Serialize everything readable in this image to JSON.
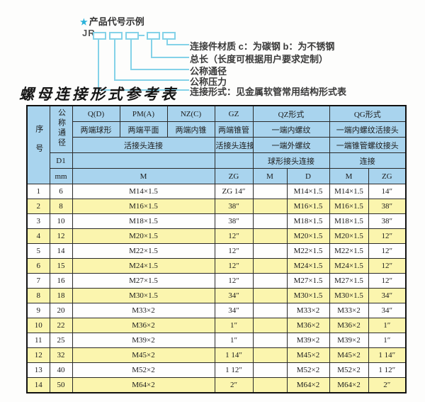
{
  "diagram": {
    "star": "★",
    "heading": "产品代号示例",
    "code_prefix": "JR",
    "callouts": [
      "连接件材质  c：为碳钢  b：为不锈钢",
      "总长（长度可根据用户要求定制）",
      "公称通径",
      "公称压力",
      "连接形式：见金属软管常用结构形式表"
    ]
  },
  "table": {
    "title": "螺母连接形式参考表",
    "header": {
      "seq": "序号",
      "dn": "公称通径",
      "d1": "D1",
      "mm": "mm",
      "col_q": "Q(D)",
      "col_pm": "PM(A)",
      "col_nz": "NZ(C)",
      "col_gz": "GZ",
      "col_qz": "QZ形式",
      "col_qg": "QG形式",
      "q_desc": "两端球形",
      "pm_desc": "两端平面",
      "nz_desc": "两端内锥",
      "gz_desc": "两端锥管",
      "qz_desc1": "一端内螺纹",
      "qg_desc1": "一端内螺纹活接头",
      "m_conn": "活接头连接",
      "gz_conn": "活接头连接",
      "qz_desc2": "一端外螺纹",
      "qg_desc2": "一端锥管螺纹接头",
      "qz_conn": "球形接头连接",
      "qg_conn": "连接",
      "m_label": "M",
      "zg_label": "ZG",
      "qz_m_label": "M",
      "qz_d_label": "D",
      "qg_m_label": "M",
      "qg_zg_label": "ZG"
    },
    "rows": [
      {
        "no": "1",
        "dn": "6",
        "m": "M14×1.5",
        "gz": "ZG 1/4\"",
        "qz_m": "",
        "qz_d": "M14×1.5",
        "qg_m": "M14×1.5",
        "qg_zg": "1/4\""
      },
      {
        "no": "2",
        "dn": "8",
        "m": "M16×1.5",
        "gz": "3/8\"",
        "qz_m": "",
        "qz_d": "M16×1.5",
        "qg_m": "M16×1.5",
        "qg_zg": "3/8\""
      },
      {
        "no": "3",
        "dn": "10",
        "m": "M18×1.5",
        "gz": "3/8\"",
        "qz_m": "",
        "qz_d": "M18×1.5",
        "qg_m": "M18×1.5",
        "qg_zg": "3/8\""
      },
      {
        "no": "4",
        "dn": "12",
        "m": "M20×1.5",
        "gz": "1/2\"",
        "qz_m": "",
        "qz_d": "M20×1.5",
        "qg_m": "M20×1.5",
        "qg_zg": "1/2\""
      },
      {
        "no": "5",
        "dn": "14",
        "m": "M22×1.5",
        "gz": "1/2\"",
        "qz_m": "",
        "qz_d": "M22×1.5",
        "qg_m": "M22×1.5",
        "qg_zg": "1/2\""
      },
      {
        "no": "6",
        "dn": "15",
        "m": "M24×1.5",
        "gz": "1/2\"",
        "qz_m": "",
        "qz_d": "M24×1.5",
        "qg_m": "M24×1.5",
        "qg_zg": "1/2\""
      },
      {
        "no": "7",
        "dn": "16",
        "m": "M27×1.5",
        "gz": "1/2\"",
        "qz_m": "",
        "qz_d": "M27×1.5",
        "qg_m": "M27×1.5",
        "qg_zg": "1/2\""
      },
      {
        "no": "8",
        "dn": "18",
        "m": "M30×1.5",
        "gz": "3/4\"",
        "qz_m": "",
        "qz_d": "M30×1.5",
        "qg_m": "M30×1.5",
        "qg_zg": "3/4\""
      },
      {
        "no": "9",
        "dn": "20",
        "m": "M33×2",
        "gz": "3/4\"",
        "qz_m": "",
        "qz_d": "M33×2",
        "qg_m": "M33×2",
        "qg_zg": "3/4\""
      },
      {
        "no": "10",
        "dn": "22",
        "m": "M36×2",
        "gz": "1\"",
        "qz_m": "",
        "qz_d": "M36×2",
        "qg_m": "M36×2",
        "qg_zg": "1\""
      },
      {
        "no": "11",
        "dn": "25",
        "m": "M39×2",
        "gz": "1\"",
        "qz_m": "",
        "qz_d": "M39×2",
        "qg_m": "M39×2",
        "qg_zg": "1\""
      },
      {
        "no": "12",
        "dn": "32",
        "m": "M45×2",
        "gz": "1 1/4\"",
        "qz_m": "",
        "qz_d": "M45×2",
        "qg_m": "M45×2",
        "qg_zg": "1 1/4\""
      },
      {
        "no": "13",
        "dn": "40",
        "m": "M52×2",
        "gz": "1 1/2\"",
        "qz_m": "",
        "qz_d": "M52×2",
        "qg_m": "M52×2",
        "qg_zg": "1 1/2\""
      },
      {
        "no": "14",
        "dn": "50",
        "m": "M64×2",
        "gz": "2\"",
        "qz_m": "",
        "qz_d": "M64×2",
        "qg_m": "M64×2",
        "qg_zg": "2\""
      }
    ]
  },
  "colors": {
    "header_bg": "#a9d4ee",
    "row_alt_bg": "#fbf5ae",
    "diagram_line": "#84d2e8",
    "star": "#29b2da",
    "border": "#111111"
  }
}
